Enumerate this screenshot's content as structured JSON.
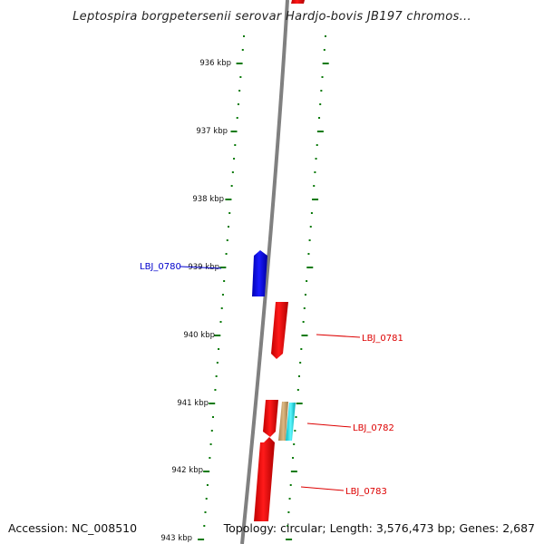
{
  "title": "Leptospira borgpetersenii serovar Hardjo-bovis JB197 chromos...",
  "accession": "Accession: NC_008510",
  "summary": "Topology: circular; Length: 3,576,473 bp; Genes: 2,687",
  "ticks": [
    "936 kbp",
    "937 kbp",
    "938 kbp",
    "939 kbp",
    "940 kbp",
    "941 kbp",
    "942 kbp",
    "943 kbp"
  ],
  "genes": [
    {
      "label": "LBJ_0780",
      "strand": "reverse",
      "color": "#0000ff"
    },
    {
      "label": "LBJ_0781",
      "strand": "forward",
      "color": "#ff0000"
    },
    {
      "label": "LBJ_0782",
      "strand": "forward",
      "color": "#ff0000"
    },
    {
      "label": "LBJ_0783",
      "strand": "forward",
      "color": "#ff0000"
    }
  ],
  "colors": {
    "backbone": "#808080",
    "tick": "#0a7a0a",
    "forward_gene": "#ff0000",
    "reverse_gene": "#0000ff",
    "feature_tan": "#c8a46e",
    "feature_cyan": "#00e5ee"
  }
}
